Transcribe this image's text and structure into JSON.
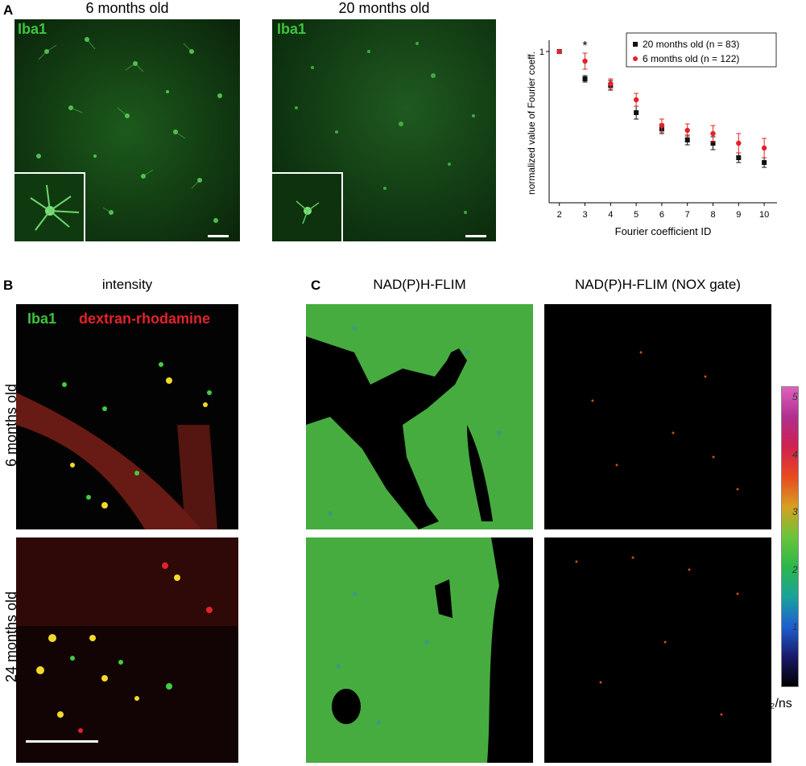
{
  "panels": {
    "a_label": "A",
    "b_label": "B",
    "c_label": "C"
  },
  "panel_a": {
    "titles": [
      "6 months old",
      "20 months old"
    ],
    "stain": "Iba1"
  },
  "panel_b": {
    "title": "intensity",
    "stain_green": "Iba1",
    "stain_red": "dextran-rhodamine",
    "row_labels": [
      "6 months old",
      "24 months old"
    ]
  },
  "panel_c": {
    "titles": [
      "NAD(P)H-FLIM",
      "NAD(P)H-FLIM (NOX gate)"
    ],
    "colorbar_ticks": [
      "1",
      "2",
      "3",
      "4",
      "5"
    ],
    "colorbar_unit": "𝒯₂/ns",
    "colorbar_colors": [
      "#000000",
      "#1a1a6b",
      "#1f5fd0",
      "#1aa39a",
      "#2bb84a",
      "#6ac43a",
      "#d6a020",
      "#e84a20",
      "#d02050",
      "#b03090",
      "#e060c0"
    ]
  },
  "colors": {
    "series_20": "#111111",
    "series_6": "#e3222a",
    "green": "#3fc33f"
  },
  "chart_data": {
    "type": "scatter",
    "title": "",
    "xlabel": "Fourier coefficient ID",
    "ylabel": "normalized value of Fourier coeff.",
    "x": [
      2,
      3,
      4,
      5,
      6,
      7,
      8,
      9,
      10
    ],
    "y_tick_label": "1",
    "annotation": "*",
    "annotation_x": 3,
    "legend_position": "top-right",
    "ylim": [
      0.06,
      1.05
    ],
    "series": [
      {
        "name": "20 months old (n =   83)",
        "color": "#111111",
        "values": [
          1.0,
          0.83,
          0.79,
          0.62,
          0.52,
          0.45,
          0.43,
          0.34,
          0.31
        ],
        "errors": [
          0.0,
          0.02,
          0.03,
          0.04,
          0.03,
          0.03,
          0.04,
          0.03,
          0.03
        ]
      },
      {
        "name": "6 months old (n = 122)",
        "color": "#e3222a",
        "values": [
          1.0,
          0.94,
          0.8,
          0.7,
          0.54,
          0.51,
          0.49,
          0.43,
          0.4
        ],
        "errors": [
          0.0,
          0.05,
          0.03,
          0.04,
          0.04,
          0.04,
          0.05,
          0.06,
          0.06
        ]
      }
    ]
  }
}
